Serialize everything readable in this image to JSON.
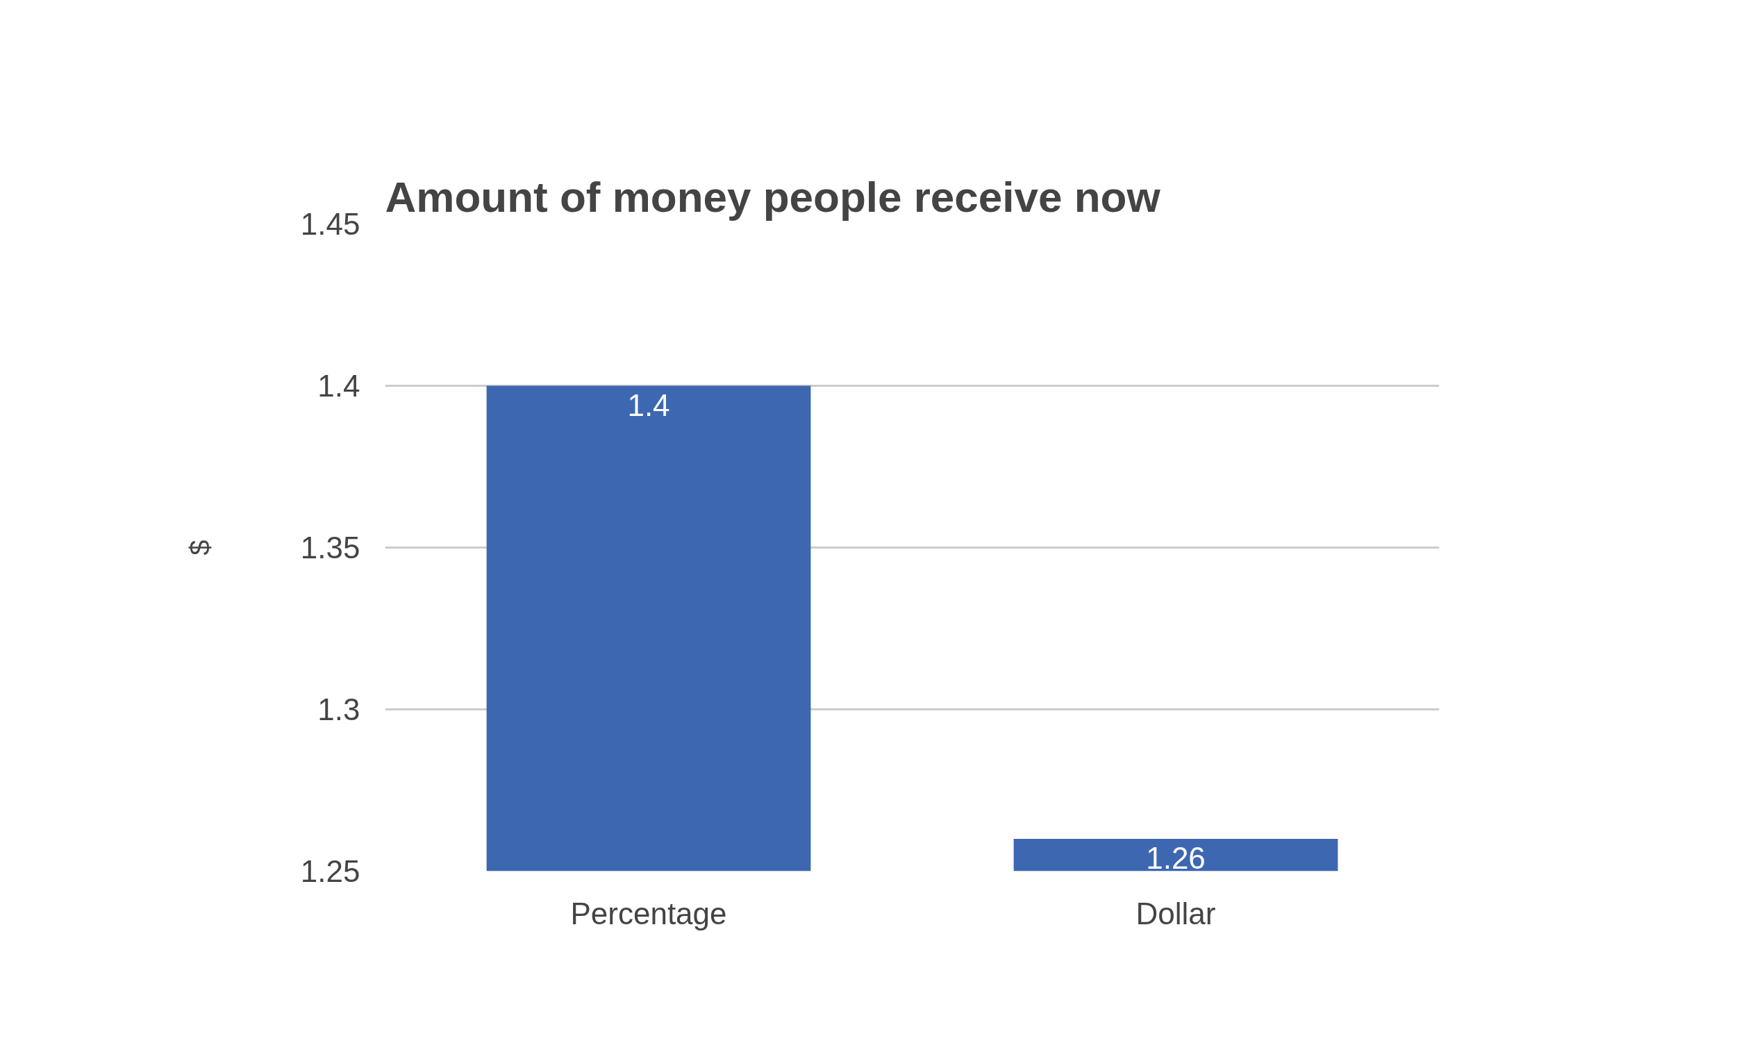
{
  "chart_data": {
    "type": "bar",
    "title": "Amount of money people receive now",
    "ylabel": "$",
    "categories": [
      "Percentage",
      "Dollar"
    ],
    "values": [
      1.4,
      1.26
    ],
    "color": "#3d67b1",
    "ylim": [
      1.25,
      1.45
    ],
    "yticks": [
      1.25,
      1.3,
      1.35,
      1.4,
      1.45
    ],
    "grid": "y",
    "data_labels": true
  }
}
